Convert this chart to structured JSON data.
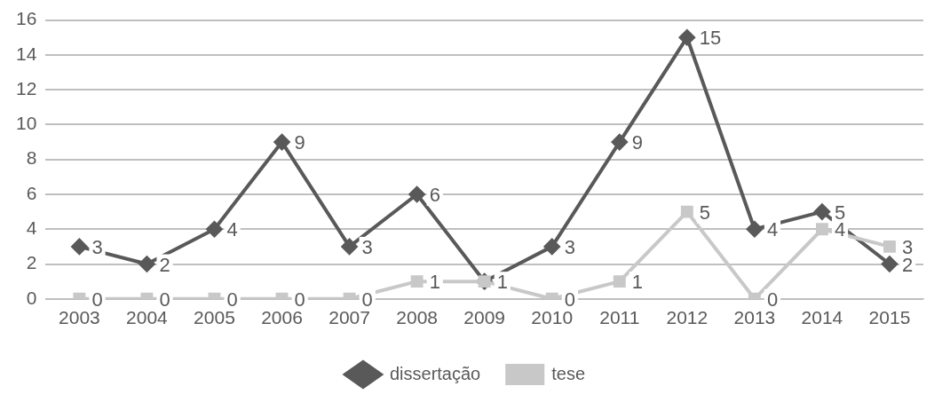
{
  "chart_data": {
    "type": "line",
    "categories": [
      "2003",
      "2004",
      "2005",
      "2006",
      "2007",
      "2008",
      "2009",
      "2010",
      "2011",
      "2012",
      "2013",
      "2014",
      "2015"
    ],
    "series": [
      {
        "name": "dissertação",
        "color": "#595959",
        "marker": "diamond",
        "values": [
          3,
          2,
          4,
          9,
          3,
          6,
          1,
          3,
          9,
          15,
          4,
          5,
          2
        ],
        "value_labels": [
          "3",
          "2",
          "4",
          "9",
          "3",
          "6",
          "1",
          "3",
          "9",
          "15",
          "4",
          "5",
          "2"
        ]
      },
      {
        "name": "tese",
        "color": "#c8c8c8",
        "marker": "square",
        "values": [
          0,
          0,
          0,
          0,
          0,
          1,
          1,
          0,
          1,
          5,
          0,
          4,
          3
        ],
        "value_labels": [
          "0",
          "0",
          "0",
          "0",
          "0",
          "1",
          null,
          "0",
          "1",
          "5",
          "0",
          "4",
          "3"
        ]
      }
    ],
    "ylim": [
      0,
      16
    ],
    "yticks": [
      0,
      2,
      4,
      6,
      8,
      10,
      12,
      14,
      16
    ],
    "grid": "y",
    "legend": "bottom"
  }
}
